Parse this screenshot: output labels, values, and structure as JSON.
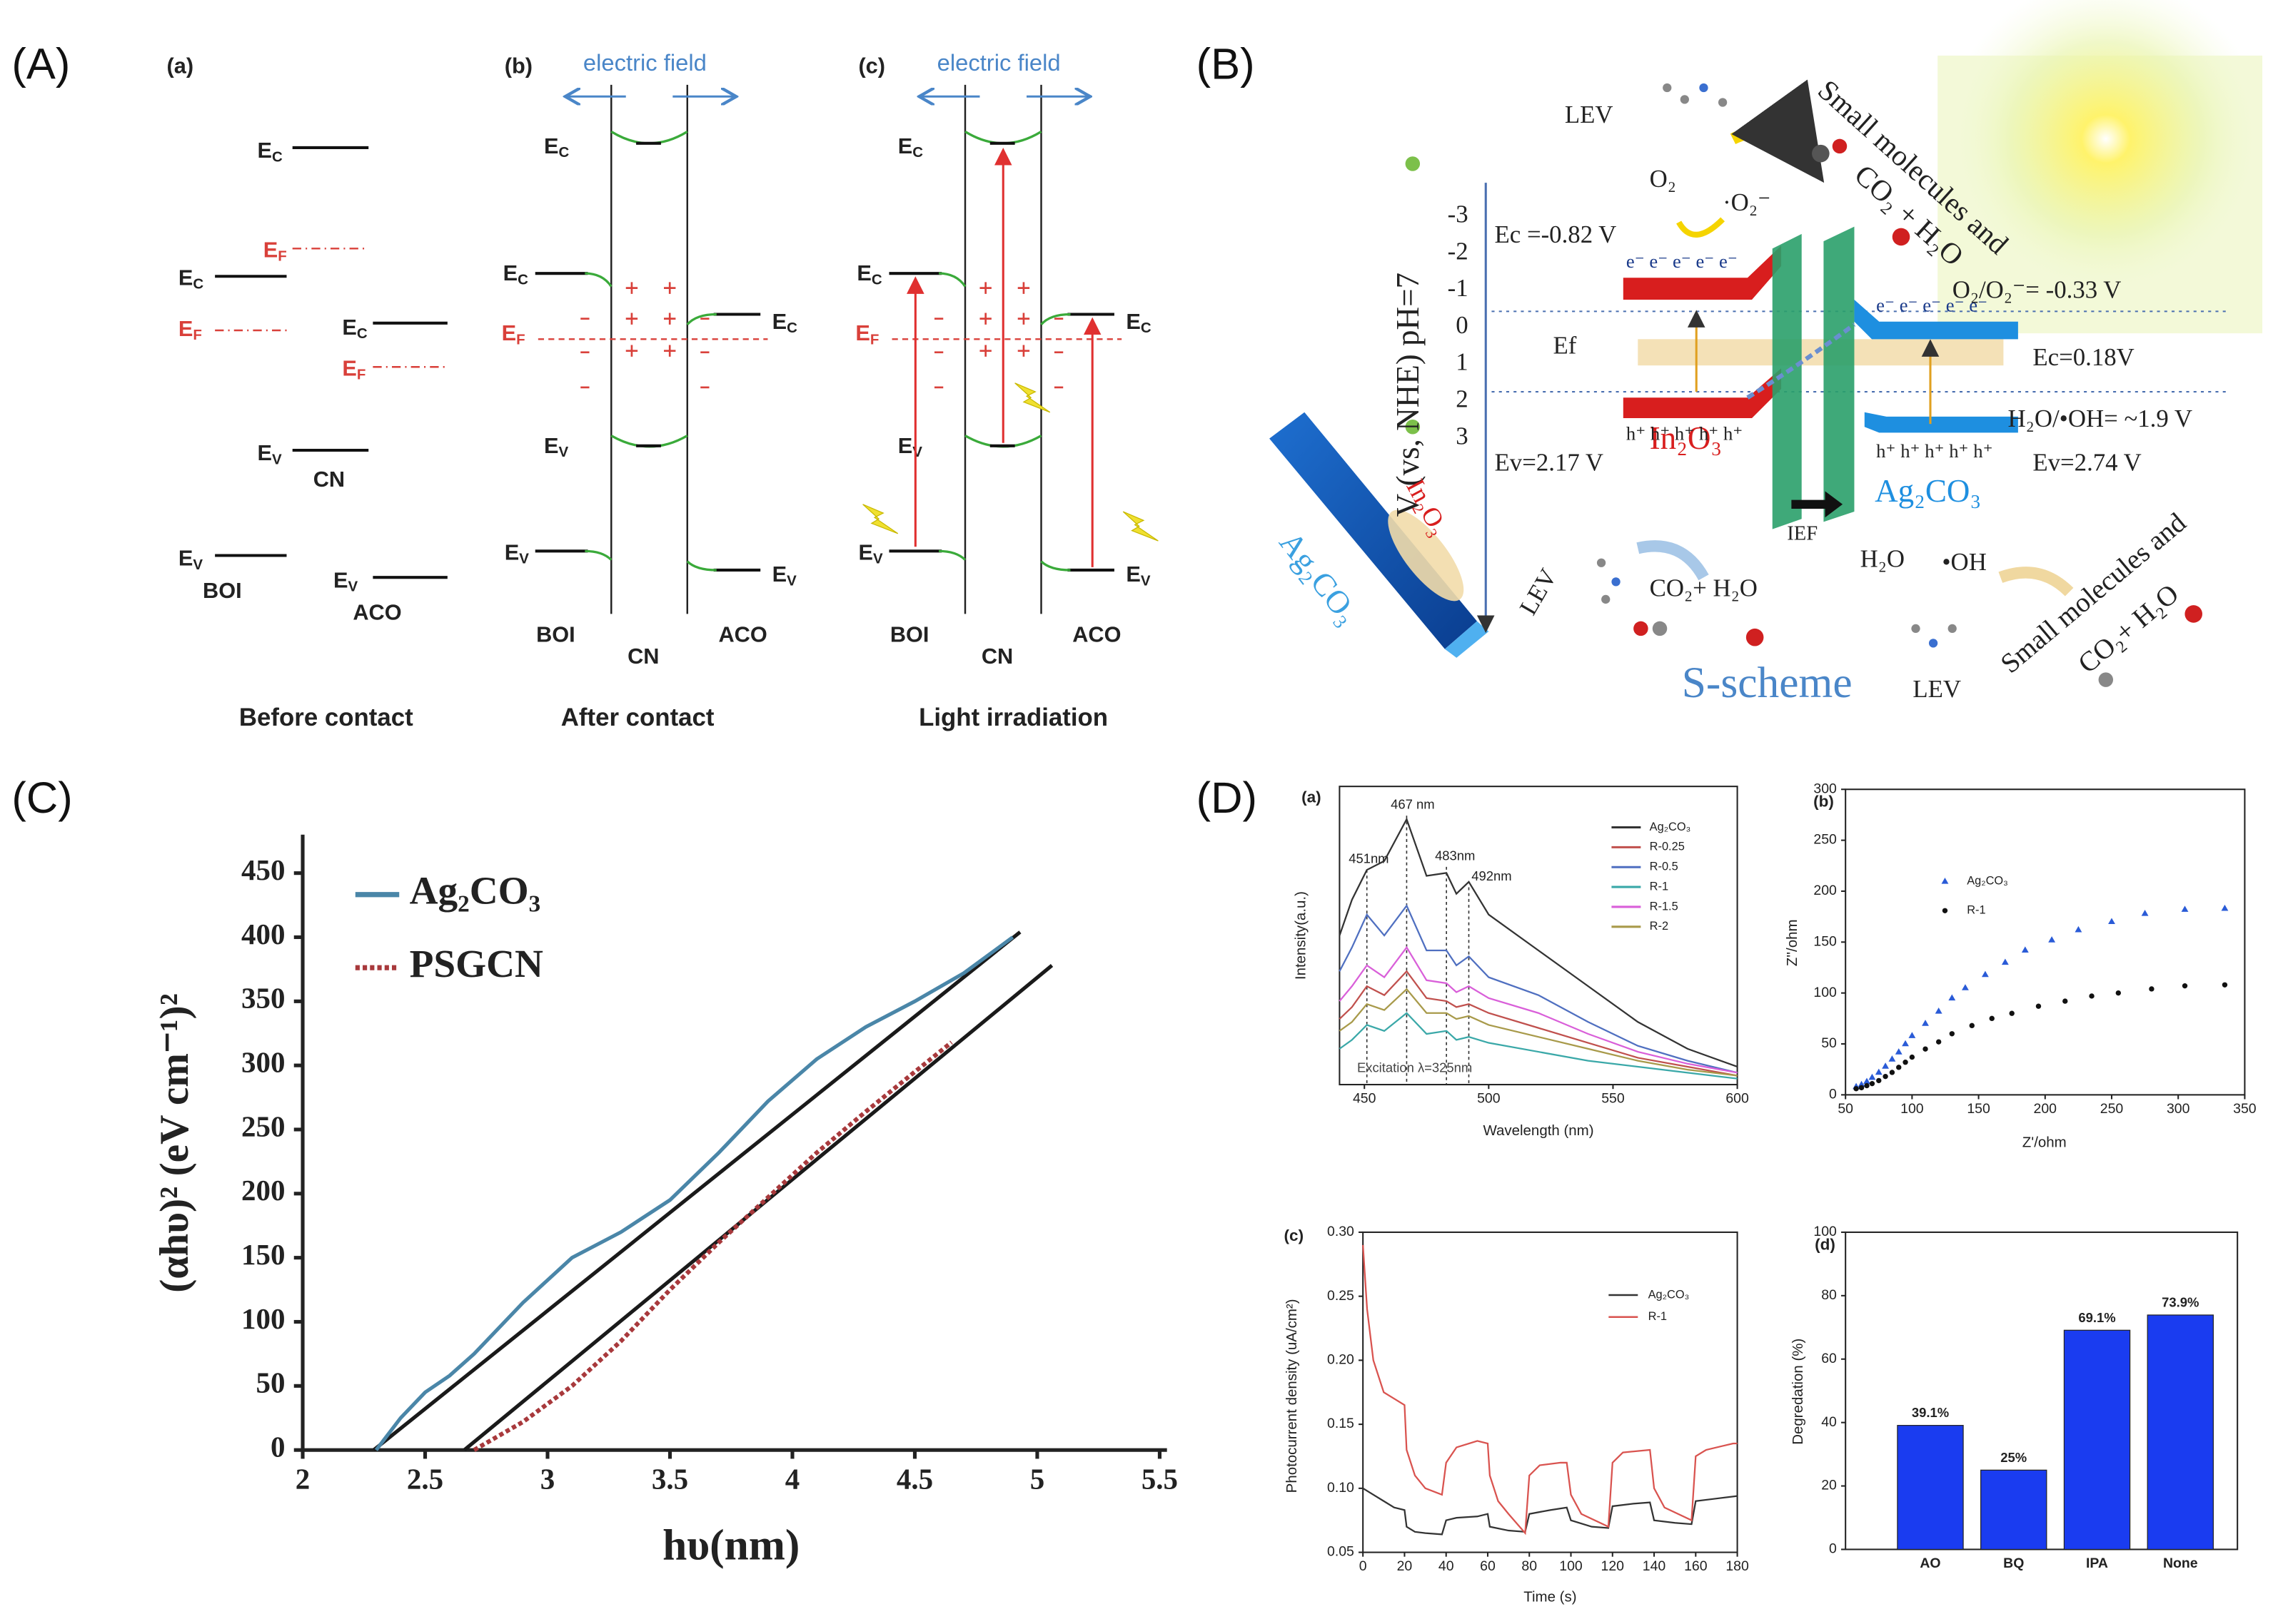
{
  "panel_labels": [
    "(A)",
    "(B)",
    "(C)",
    "(D)"
  ],
  "panel_A": {
    "subpanels": [
      {
        "label": "(a)",
        "caption": "Before contact",
        "materials": [
          "BOI",
          "CN",
          "ACO"
        ],
        "levels": [
          {
            "e": "E",
            "sub": "C"
          },
          {
            "e": "E",
            "sub": "F"
          },
          {
            "e": "E",
            "sub": "C"
          },
          {
            "e": "E",
            "sub": "F"
          },
          {
            "e": "E",
            "sub": "C"
          },
          {
            "e": "E",
            "sub": "F"
          },
          {
            "e": "E",
            "sub": "V"
          },
          {
            "e": "E",
            "sub": "V"
          },
          {
            "e": "E",
            "sub": "V"
          }
        ]
      },
      {
        "label": "(b)",
        "field": "electric field",
        "caption": "After contact",
        "materials": [
          "BOI",
          "CN",
          "ACO"
        ],
        "levels": [
          {
            "e": "E",
            "sub": "C"
          },
          {
            "e": "E",
            "sub": "C"
          },
          {
            "e": "E",
            "sub": "C"
          },
          {
            "e": "E",
            "sub": "F"
          },
          {
            "e": "E",
            "sub": "V"
          },
          {
            "e": "E",
            "sub": "V"
          },
          {
            "e": "E",
            "sub": "V"
          }
        ]
      },
      {
        "label": "(c)",
        "field": "electric field",
        "caption": "Light irradiation",
        "materials": [
          "BOI",
          "CN",
          "ACO"
        ],
        "levels": [
          {
            "e": "E",
            "sub": "C"
          },
          {
            "e": "E",
            "sub": "C"
          },
          {
            "e": "E",
            "sub": "C"
          },
          {
            "e": "E",
            "sub": "F"
          },
          {
            "e": "E",
            "sub": "V"
          },
          {
            "e": "E",
            "sub": "V"
          },
          {
            "e": "E",
            "sub": "V"
          }
        ]
      }
    ]
  },
  "panel_B": {
    "axis_label": "V (vs, NHE) pH=7",
    "axis_ticks": [
      -3,
      -2,
      -1,
      0,
      1,
      2,
      3
    ],
    "lev1": "LEV",
    "small1": "Small molecules and",
    "prod1": "CO₂ + H₂O",
    "o2": "O₂",
    "o2r": "·O₂⁻",
    "ec_in": "Ec =-0.82 V",
    "ef": "Ef",
    "ev_in": "Ev=2.17 V",
    "in2o3": "In₂O₃",
    "o2pot": "O₂/O₂⁻= -0.33 V",
    "ec_ag": "Ec=0.18V",
    "ohpot": "H₂O/•OH= ~1.9 V",
    "ev_ag": "Ev=2.74 V",
    "ag2co3": "Ag₂CO₃",
    "ief": "IEF",
    "lev2": "LEV",
    "prod2": "CO₂+ H₂O",
    "h2o": "H₂O",
    "oh": "•OH",
    "small2": "Small molecules and",
    "prod3": "CO₂+ H₂O",
    "scheme": "S-scheme",
    "lev3": "LEV",
    "rod_ag": "Ag₂CO₃",
    "rod_in": "In₂O₃",
    "e_in": "e⁻ e⁻ e⁻ e⁻ e⁻",
    "h_in": "h⁺ h⁺ h⁺ h⁺ h⁺",
    "e_ag": "e⁻ e⁻ e⁻ e⁻ e⁻",
    "h_ag": "h⁺ h⁺ h⁺ h⁺ h⁺"
  },
  "chart_data": [
    {
      "type": "line",
      "ylabel": "(αhυ)² (eV cm⁻¹)²",
      "xlabel": "hυ(nm)",
      "xlim": [
        2,
        5.5
      ],
      "xticks": [
        2,
        2.5,
        3,
        3.5,
        4,
        4.5,
        5,
        5.5
      ],
      "ylim": [
        0,
        480
      ],
      "yticks": [
        0,
        50,
        100,
        150,
        200,
        250,
        300,
        350,
        400,
        450
      ],
      "series": [
        {
          "name": "Ag₂CO₃",
          "color": "#4a86a8",
          "x": [
            2.3,
            2.4,
            2.5,
            2.6,
            2.7,
            2.9,
            3.1,
            3.3,
            3.5,
            3.7,
            3.9,
            4.1,
            4.3,
            4.5,
            4.7,
            4.9
          ],
          "values": [
            0,
            25,
            45,
            58,
            75,
            115,
            150,
            170,
            195,
            232,
            272,
            305,
            330,
            350,
            372,
            400
          ]
        },
        {
          "name": "PSGCN",
          "color": "#a8393c",
          "style": "dotted",
          "x": [
            2.7,
            2.9,
            3.1,
            3.3,
            3.5,
            3.7,
            3.9,
            4.1,
            4.3,
            4.5,
            4.65
          ],
          "values": [
            0,
            22,
            50,
            85,
            125,
            162,
            197,
            232,
            264,
            295,
            318
          ]
        }
      ],
      "fit_lines": [
        {
          "color": "#1a1a1a",
          "x": [
            2.29,
            4.93
          ],
          "values": [
            0,
            404
          ]
        },
        {
          "color": "#1a1a1a",
          "x": [
            2.66,
            5.06
          ],
          "values": [
            0,
            378
          ]
        }
      ]
    },
    {
      "type": "line",
      "subpanel": "(a)",
      "ylabel": "Intensity(a.u.)",
      "xlabel": "Wavelength (nm)",
      "xlim": [
        440,
        600
      ],
      "xticks": [
        450,
        500,
        550,
        600
      ],
      "ylim": [
        0,
        100
      ],
      "x": [
        440,
        445,
        451,
        458,
        467,
        475,
        483,
        487,
        492,
        500,
        520,
        540,
        560,
        580,
        600
      ],
      "series": [
        {
          "name": "Ag₂CO₃",
          "color": "#333333",
          "values": [
            50,
            62,
            72,
            75,
            89,
            70,
            71,
            64,
            68,
            57,
            45,
            33,
            21,
            12,
            6
          ]
        },
        {
          "name": "R-0.25",
          "color": "#c0504d",
          "values": [
            22,
            26,
            33,
            30,
            38,
            29,
            28,
            26,
            27,
            24,
            19,
            14,
            9,
            6,
            3
          ]
        },
        {
          "name": "R-0.5",
          "color": "#4f6fc0",
          "values": [
            38,
            46,
            57,
            50,
            60,
            45,
            45,
            40,
            43,
            36,
            30,
            21,
            13,
            8,
            4
          ]
        },
        {
          "name": "R-1",
          "color": "#3aa8a8",
          "values": [
            12,
            15,
            20,
            18,
            24,
            17,
            18,
            15,
            16,
            14,
            11,
            8,
            6,
            4,
            2
          ]
        },
        {
          "name": "R-1.5",
          "color": "#d95fd9",
          "values": [
            28,
            33,
            40,
            36,
            46,
            35,
            34,
            31,
            33,
            29,
            24,
            17,
            11,
            7,
            4
          ]
        },
        {
          "name": "R-2",
          "color": "#a89a4a",
          "values": [
            18,
            21,
            27,
            25,
            32,
            24,
            24,
            22,
            23,
            20,
            16,
            12,
            8,
            5,
            3
          ]
        }
      ],
      "annotations": [
        {
          "text": "467 nm",
          "x": 467
        },
        {
          "text": "451nm",
          "x": 451
        },
        {
          "text": "483nm",
          "x": 483
        },
        {
          "text": "492nm",
          "x": 492
        }
      ],
      "note": "Excitation λ=325nm"
    },
    {
      "type": "scatter",
      "subpanel": "(b)",
      "ylabel": "Z''/ohm",
      "xlabel": "Z'/ohm",
      "xlim": [
        50,
        350
      ],
      "xticks": [
        50,
        100,
        150,
        200,
        250,
        300,
        350
      ],
      "ylim": [
        0,
        300
      ],
      "yticks": [
        0,
        50,
        100,
        150,
        200,
        250,
        300
      ],
      "series": [
        {
          "name": "Ag₂CO₃",
          "color": "#2a5bd7",
          "marker": "triangle",
          "x": [
            58,
            62,
            66,
            70,
            75,
            80,
            85,
            90,
            95,
            100,
            110,
            120,
            130,
            140,
            155,
            170,
            185,
            205,
            225,
            250,
            275,
            305,
            335
          ],
          "values": [
            8,
            10,
            13,
            17,
            22,
            28,
            35,
            42,
            50,
            58,
            70,
            82,
            95,
            105,
            118,
            130,
            142,
            152,
            162,
            170,
            178,
            182,
            183
          ]
        },
        {
          "name": "R-1",
          "color": "#111111",
          "marker": "circle",
          "x": [
            58,
            62,
            66,
            70,
            75,
            80,
            85,
            90,
            95,
            100,
            110,
            120,
            130,
            145,
            160,
            175,
            195,
            215,
            235,
            255,
            280,
            305,
            335
          ],
          "values": [
            6,
            7,
            9,
            11,
            14,
            18,
            22,
            27,
            32,
            37,
            45,
            52,
            60,
            68,
            75,
            80,
            87,
            92,
            97,
            100,
            104,
            107,
            108
          ]
        }
      ]
    },
    {
      "type": "line",
      "subpanel": "(c)",
      "ylabel": "Photocurrent density (uA/cm²)",
      "xlabel": "Time (s)",
      "xlim": [
        0,
        180
      ],
      "xticks": [
        0,
        20,
        40,
        60,
        80,
        100,
        120,
        140,
        160,
        180
      ],
      "ylim": [
        0.05,
        0.3
      ],
      "yticks": [
        0.05,
        {
          "value": 0.1,
          "label": "0.10"
        },
        0.15,
        {
          "value": 0.2,
          "label": "0.20"
        },
        0.25,
        {
          "value": 0.3,
          "label": "0.30"
        }
      ],
      "series": [
        {
          "name": "Ag₂CO₃",
          "color": "#333333",
          "x": [
            0,
            5,
            10,
            15,
            20,
            21,
            25,
            30,
            38,
            40,
            45,
            55,
            60,
            61,
            70,
            78,
            80,
            90,
            98,
            100,
            110,
            118,
            120,
            130,
            138,
            140,
            150,
            158,
            160,
            170,
            180
          ],
          "values": [
            0.1,
            0.095,
            0.09,
            0.085,
            0.083,
            0.07,
            0.066,
            0.065,
            0.064,
            0.075,
            0.077,
            0.078,
            0.08,
            0.07,
            0.067,
            0.066,
            0.08,
            0.083,
            0.085,
            0.075,
            0.07,
            0.069,
            0.086,
            0.088,
            0.089,
            0.075,
            0.073,
            0.072,
            0.09,
            0.092,
            0.094
          ]
        },
        {
          "name": "R-1",
          "color": "#d9534f",
          "x": [
            0,
            2,
            5,
            10,
            15,
            20,
            21,
            25,
            30,
            38,
            40,
            45,
            55,
            60,
            61,
            65,
            70,
            78,
            80,
            85,
            95,
            98,
            100,
            105,
            118,
            120,
            125,
            138,
            140,
            145,
            158,
            160,
            165,
            178,
            180
          ],
          "values": [
            0.29,
            0.24,
            0.2,
            0.175,
            0.17,
            0.165,
            0.13,
            0.11,
            0.1,
            0.095,
            0.12,
            0.132,
            0.137,
            0.135,
            0.11,
            0.09,
            0.08,
            0.065,
            0.11,
            0.118,
            0.12,
            0.12,
            0.095,
            0.08,
            0.07,
            0.12,
            0.128,
            0.13,
            0.1,
            0.085,
            0.075,
            0.125,
            0.13,
            0.135,
            0.135
          ]
        }
      ]
    },
    {
      "type": "bar",
      "subpanel": "(d)",
      "ylabel": "Degredation (%)",
      "categories": [
        "AO",
        "BQ",
        "IPA",
        "None"
      ],
      "values": [
        39.1,
        25,
        69.1,
        73.9
      ],
      "value_labels": [
        "39.1%",
        "25%",
        "69.1%",
        "73.9%"
      ],
      "color": "#1a3cf0",
      "ylim": [
        0,
        100
      ],
      "yticks": [
        0,
        20,
        40,
        60,
        80,
        100
      ]
    }
  ]
}
